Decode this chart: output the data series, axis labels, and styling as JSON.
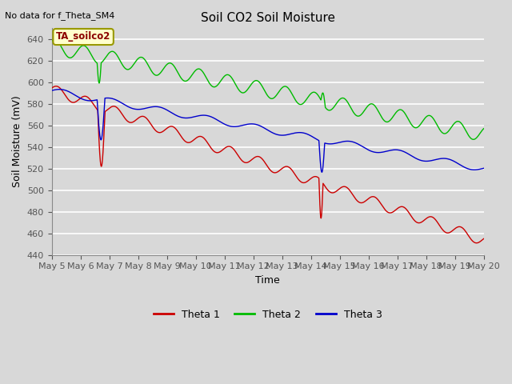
{
  "title": "Soil CO2 Soil Moisture",
  "no_data_text": "No data for f_Theta_SM4",
  "annotation_text": "TA_soilco2",
  "xlabel": "Time",
  "ylabel": "Soil Moisture (mV)",
  "ylim": [
    440,
    650
  ],
  "yticks": [
    440,
    460,
    480,
    500,
    520,
    540,
    560,
    580,
    600,
    620,
    640
  ],
  "bg_color": "#d8d8d8",
  "plot_bg_color": "#d8d8d8",
  "grid_color": "#ffffff",
  "colors": {
    "theta1": "#cc0000",
    "theta2": "#00bb00",
    "theta3": "#0000cc"
  },
  "legend_labels": [
    "Theta 1",
    "Theta 2",
    "Theta 3"
  ],
  "x_tick_labels": [
    "May 5",
    "May 6",
    "May 7",
    "May 8",
    "May 9",
    "May 10",
    "May 11",
    "May 12",
    "May 13",
    "May 14",
    "May 15",
    "May 16",
    "May 17",
    "May 18",
    "May 19",
    "May 20"
  ]
}
